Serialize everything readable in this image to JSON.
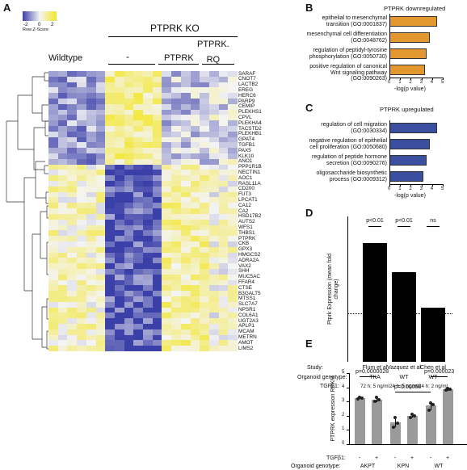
{
  "panels": {
    "A": "A",
    "B": "B",
    "C": "C",
    "D": "D",
    "E": "E"
  },
  "heatmap": {
    "legend_ticks": [
      "-2",
      "0",
      "2"
    ],
    "legend_label": "Row Z-Score",
    "group_header": "PTPRK KO",
    "col_groups": [
      "Wildtype",
      "-",
      "PTPRK",
      "PTPRK.\nRQ"
    ],
    "col_group_counts": [
      6,
      6,
      5,
      3
    ],
    "genes": [
      "SARAF",
      "CNOT7",
      "LACTB2",
      "EREG",
      "HERC6",
      "PARP9",
      "CEMIP",
      "PLEKHS1",
      "CPVL",
      "PLEKHA4",
      "TACSTD2",
      "PLEKHB1",
      "GPAT4",
      "TGFB1",
      "PAX5",
      "KLK10",
      "ANO1",
      "PPP1R1B",
      "NECTIN1",
      "AOC1",
      "RASL11A",
      "CD200",
      "FUT3",
      "LPCAT1",
      "CA12",
      "CA2",
      "HSD17B2",
      "AUTS2",
      "WFS1",
      "THBS1",
      "PTPRK",
      "CKB",
      "GPX3",
      "HMGCS2",
      "ADRA2A",
      "VAX2",
      "SHH",
      "MUC5AC",
      "FFAR4",
      "CTSE",
      "B3GALT5",
      "MTSS1",
      "SLC7A7",
      "NPSR1",
      "COL6A1",
      "UGT2A3",
      "APLP1",
      "MCAM",
      "METRN",
      "AMOT",
      "LIMS2"
    ],
    "colors": {
      "low": "#3b3fa8",
      "mid": "#f4f4f4",
      "high": "#f3e62a"
    }
  },
  "chart_data": [
    {
      "type": "bar",
      "panel": "B",
      "title": "PTPRK downregulated",
      "categories": [
        "epithelial to mesenchymal transition (GO:0001837)",
        "mesenchymal cell differentiation (GO:0048762)",
        "regulation of peptidyl-tyrosine phosphorylation (GO:0050730)",
        "positive regulation of canonical Wnt signaling pathway (GO:0090263)"
      ],
      "values": [
        4.5,
        3.8,
        3.5,
        3.3
      ],
      "xlabel": "-log(p value)",
      "xticks": [
        "0",
        "1",
        "2",
        "3",
        "4",
        "5"
      ],
      "xlim": [
        0,
        5
      ],
      "color": "#e3972f"
    },
    {
      "type": "bar",
      "panel": "C",
      "title": "PTPRK upregulated",
      "categories": [
        "regulation of cell migration (GO:0030334)",
        "negative regulation of epithelial cell proliferation (GO:0050680)",
        "regulation of peptide hormone secretion (GO:0090276)",
        "oligosaccharide biosynthetic process (GO:0009312)"
      ],
      "values": [
        4.5,
        3.8,
        3.5,
        3.2
      ],
      "xlabel": "-log(p value)",
      "xticks": [
        "0",
        "1",
        "2",
        "3",
        "4",
        "5"
      ],
      "xlim": [
        0,
        5
      ],
      "color": "#3b4fa0"
    },
    {
      "type": "bar",
      "panel": "D",
      "ylabel": "Ptprk Expression (mean fold change)",
      "categories": [
        "Flum et al",
        "Vazquez et al",
        "Chen et al"
      ],
      "values": [
        2.45,
        1.85,
        1.12
      ],
      "ylim": [
        0,
        3
      ],
      "significance": [
        "p<0.01",
        "p<0.01",
        "ns"
      ],
      "study_label": "Study:",
      "organoid_label": "Organoid genotype:",
      "genotypes": [
        "TKA",
        "WT",
        "WT"
      ],
      "tgf_label": "TGFβ1:",
      "tgf_values": [
        "72 h; 5 ng/ml",
        "24 h; 5 ng/ml",
        "24 h; 2 ng/ml"
      ]
    },
    {
      "type": "bar",
      "panel": "E",
      "ylabel": "PTPRK expression RPKM",
      "yticks": [
        "0",
        "1",
        "2",
        "3",
        "4",
        "5"
      ],
      "ylim": [
        0,
        5
      ],
      "categories": [
        "AKPT -",
        "AKPT +",
        "KPN -",
        "KPN +",
        "WT -",
        "WT +"
      ],
      "values": [
        3.25,
        3.15,
        1.55,
        2.0,
        2.7,
        3.85
      ],
      "points": [
        [
          3.2,
          3.3,
          3.25
        ],
        [
          3.0,
          3.3,
          3.1
        ],
        [
          1.2,
          1.9,
          1.5
        ],
        [
          1.9,
          2.1,
          2.0
        ],
        [
          2.4,
          2.9,
          2.8
        ],
        [
          3.8,
          3.9,
          3.85
        ]
      ],
      "comparisons": [
        "p=0.0000028",
        "p=0.00066",
        "p=0.000023"
      ],
      "tgf_label": "TGFβ1:",
      "tgf_signs": [
        "-",
        "+",
        "-",
        "+",
        "-",
        "+"
      ],
      "organoid_label": "Organoid genotype:",
      "genotypes": [
        "AKPT",
        "KPN",
        "WT"
      ]
    }
  ]
}
